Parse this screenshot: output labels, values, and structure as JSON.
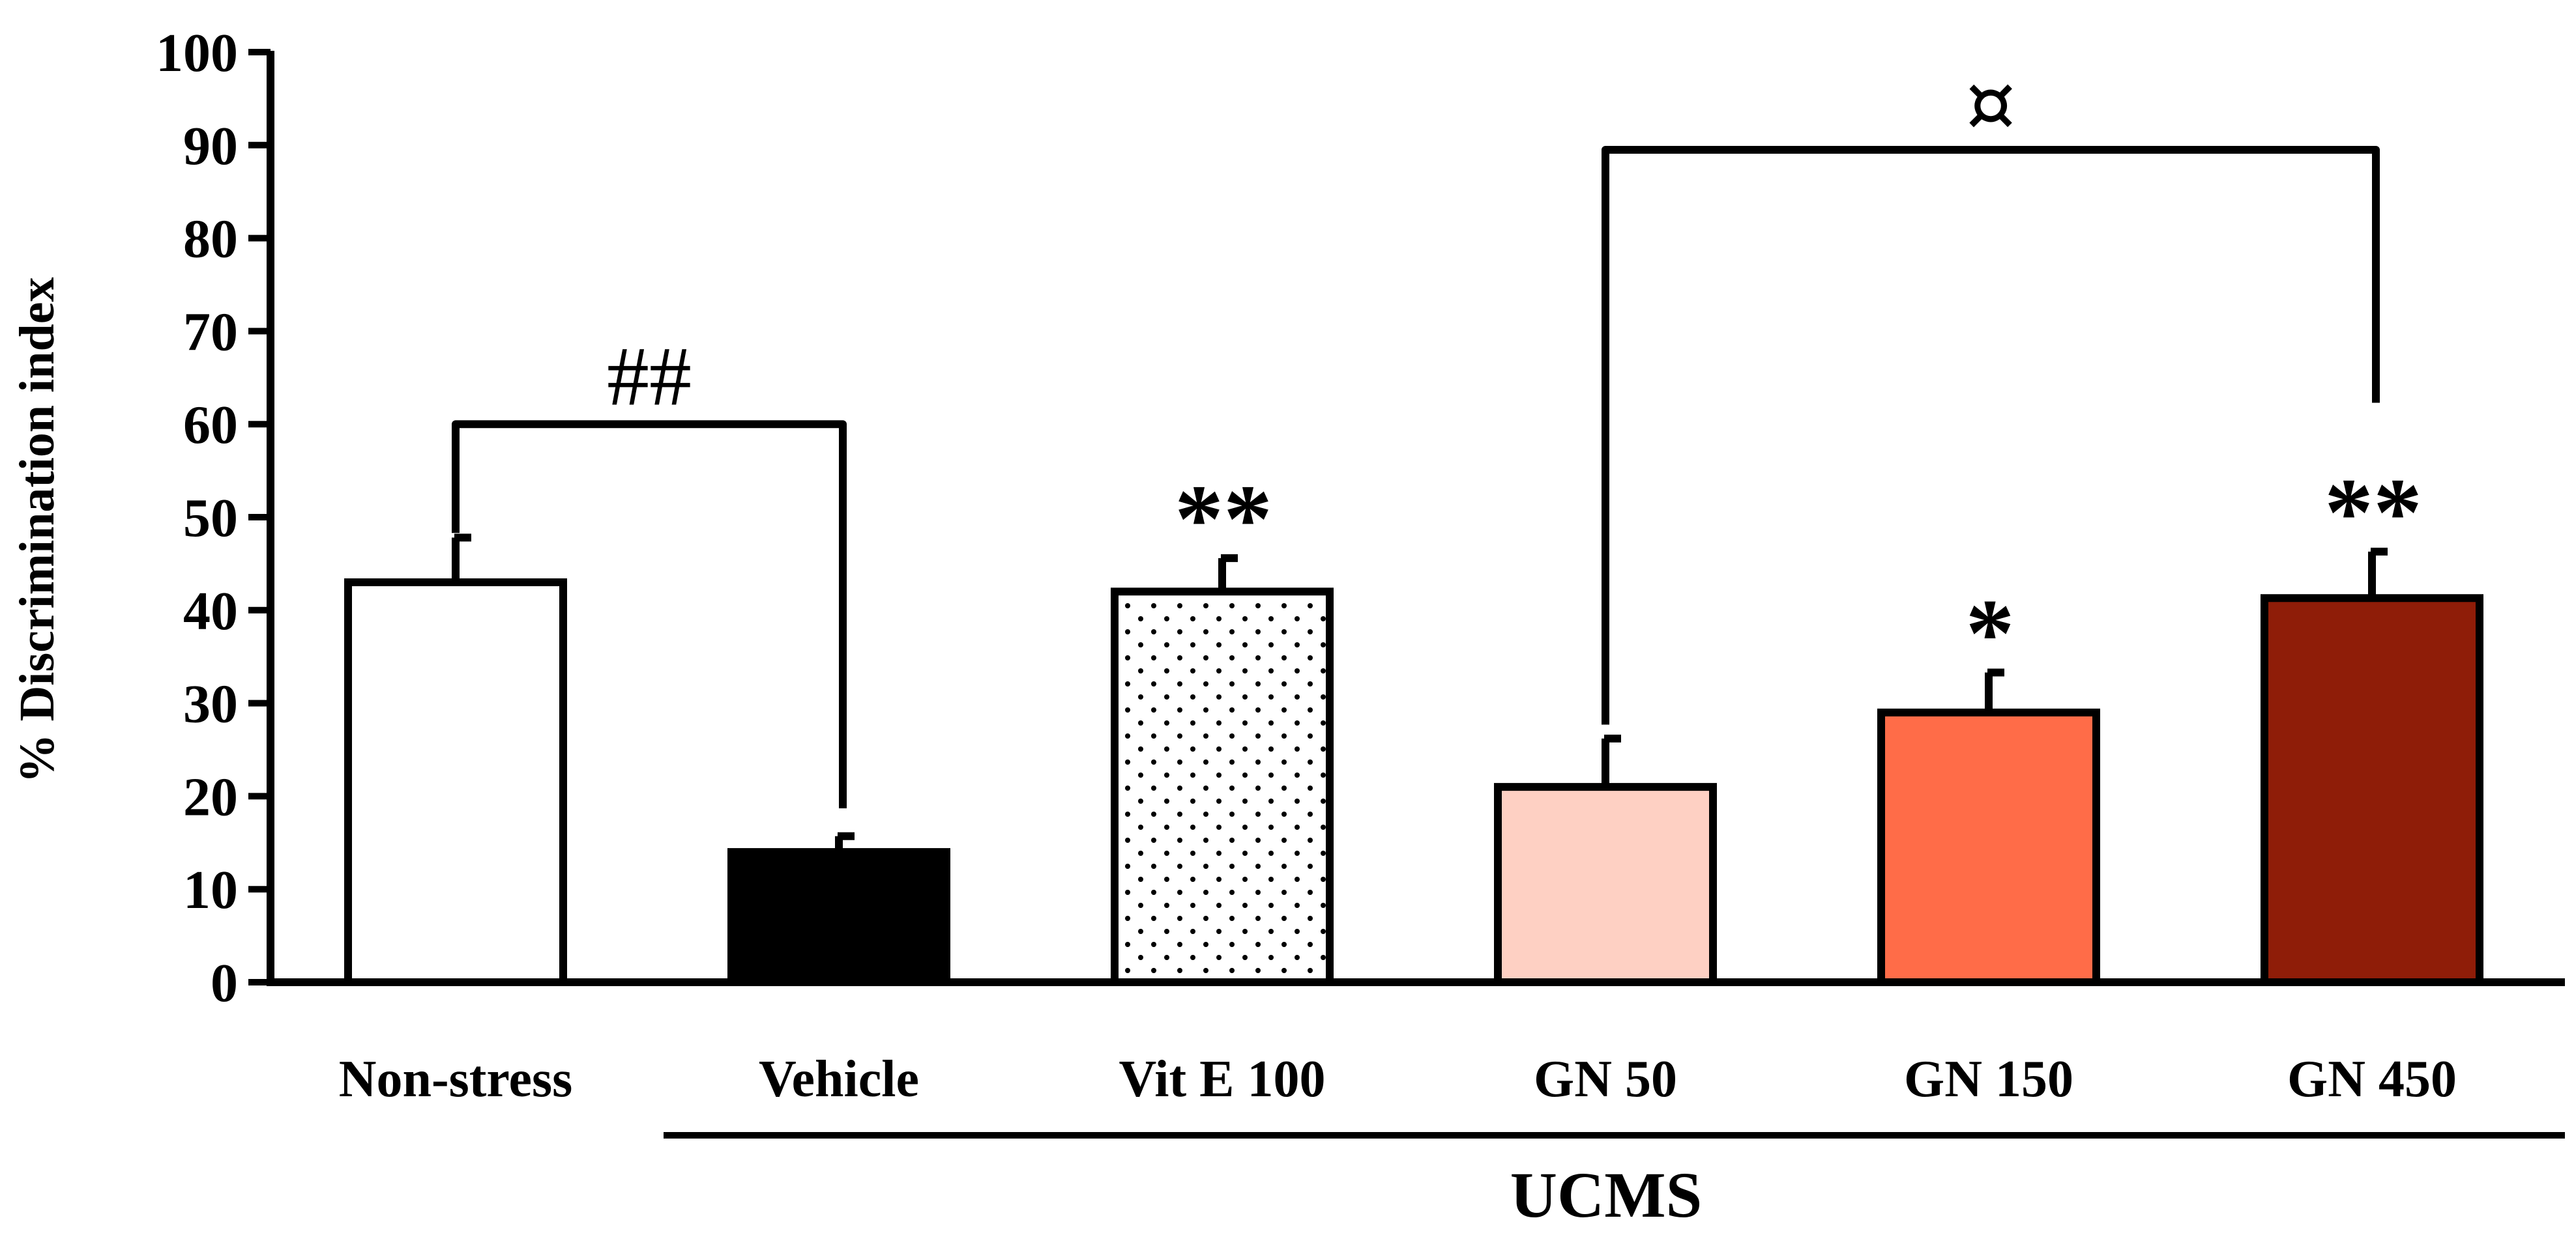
{
  "chart_data": {
    "type": "bar",
    "title": "",
    "xlabel": "",
    "ylabel": "% Discrimination index",
    "ylim": [
      0,
      100
    ],
    "yticks": [
      0,
      10,
      20,
      30,
      40,
      50,
      60,
      70,
      80,
      90,
      100
    ],
    "grid": false,
    "categories": [
      "Non-stress",
      "Vehicle",
      "Vit E 100",
      "GN 50",
      "GN 150",
      "GN 450"
    ],
    "values": [
      43,
      14,
      42,
      21,
      29,
      41.3
    ],
    "errors": [
      4.8,
      1.7,
      3.6,
      5.2,
      4.3,
      5.0
    ],
    "fills": [
      "#ffffff",
      "#000000",
      "dotted",
      "#fed0c3",
      "#ff6c48",
      "#8f1d08"
    ],
    "significance": [
      "",
      "",
      "**",
      "",
      "*",
      "**"
    ],
    "group": {
      "label": "UCMS",
      "from": "Vehicle",
      "to": "GN 450"
    },
    "brackets": [
      {
        "from": "Non-stress",
        "to": "Vehicle",
        "level": 60,
        "label": "##"
      },
      {
        "from": "GN 50",
        "to": "GN 450",
        "level": 89.5,
        "label": "¤"
      }
    ]
  }
}
